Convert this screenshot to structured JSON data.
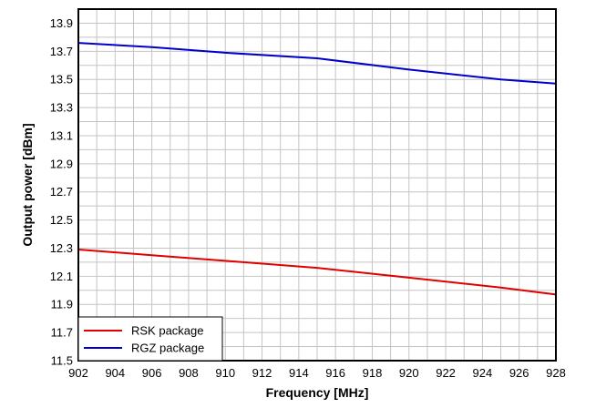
{
  "chart_data": {
    "type": "line",
    "title": "",
    "xlabel": "Frequency [MHz]",
    "ylabel": "Output power [dBm]",
    "xlim": [
      902,
      928
    ],
    "ylim": [
      11.5,
      14.0
    ],
    "xticks": [
      "902",
      "904",
      "906",
      "908",
      "910",
      "912",
      "914",
      "916",
      "918",
      "920",
      "922",
      "924",
      "926",
      "928"
    ],
    "yticks": [
      "11.5",
      "11.7",
      "11.9",
      "12.1",
      "12.3",
      "12.5",
      "12.7",
      "12.9",
      "13.1",
      "13.3",
      "13.5",
      "13.7",
      "13.9"
    ],
    "x_minor_step": 1,
    "y_minor_step": 0.1,
    "grid": true,
    "legend_position": "bottom-left",
    "series": [
      {
        "name": "RSK package",
        "color": "#e00000",
        "x": [
          902,
          906,
          910,
          915,
          920,
          925,
          928
        ],
        "y": [
          12.29,
          12.25,
          12.21,
          12.16,
          12.09,
          12.02,
          11.97
        ]
      },
      {
        "name": "RGZ package",
        "color": "#0000cc",
        "x": [
          902,
          906,
          910,
          915,
          920,
          925,
          928
        ],
        "y": [
          13.76,
          13.73,
          13.69,
          13.65,
          13.57,
          13.5,
          13.47
        ]
      }
    ]
  }
}
